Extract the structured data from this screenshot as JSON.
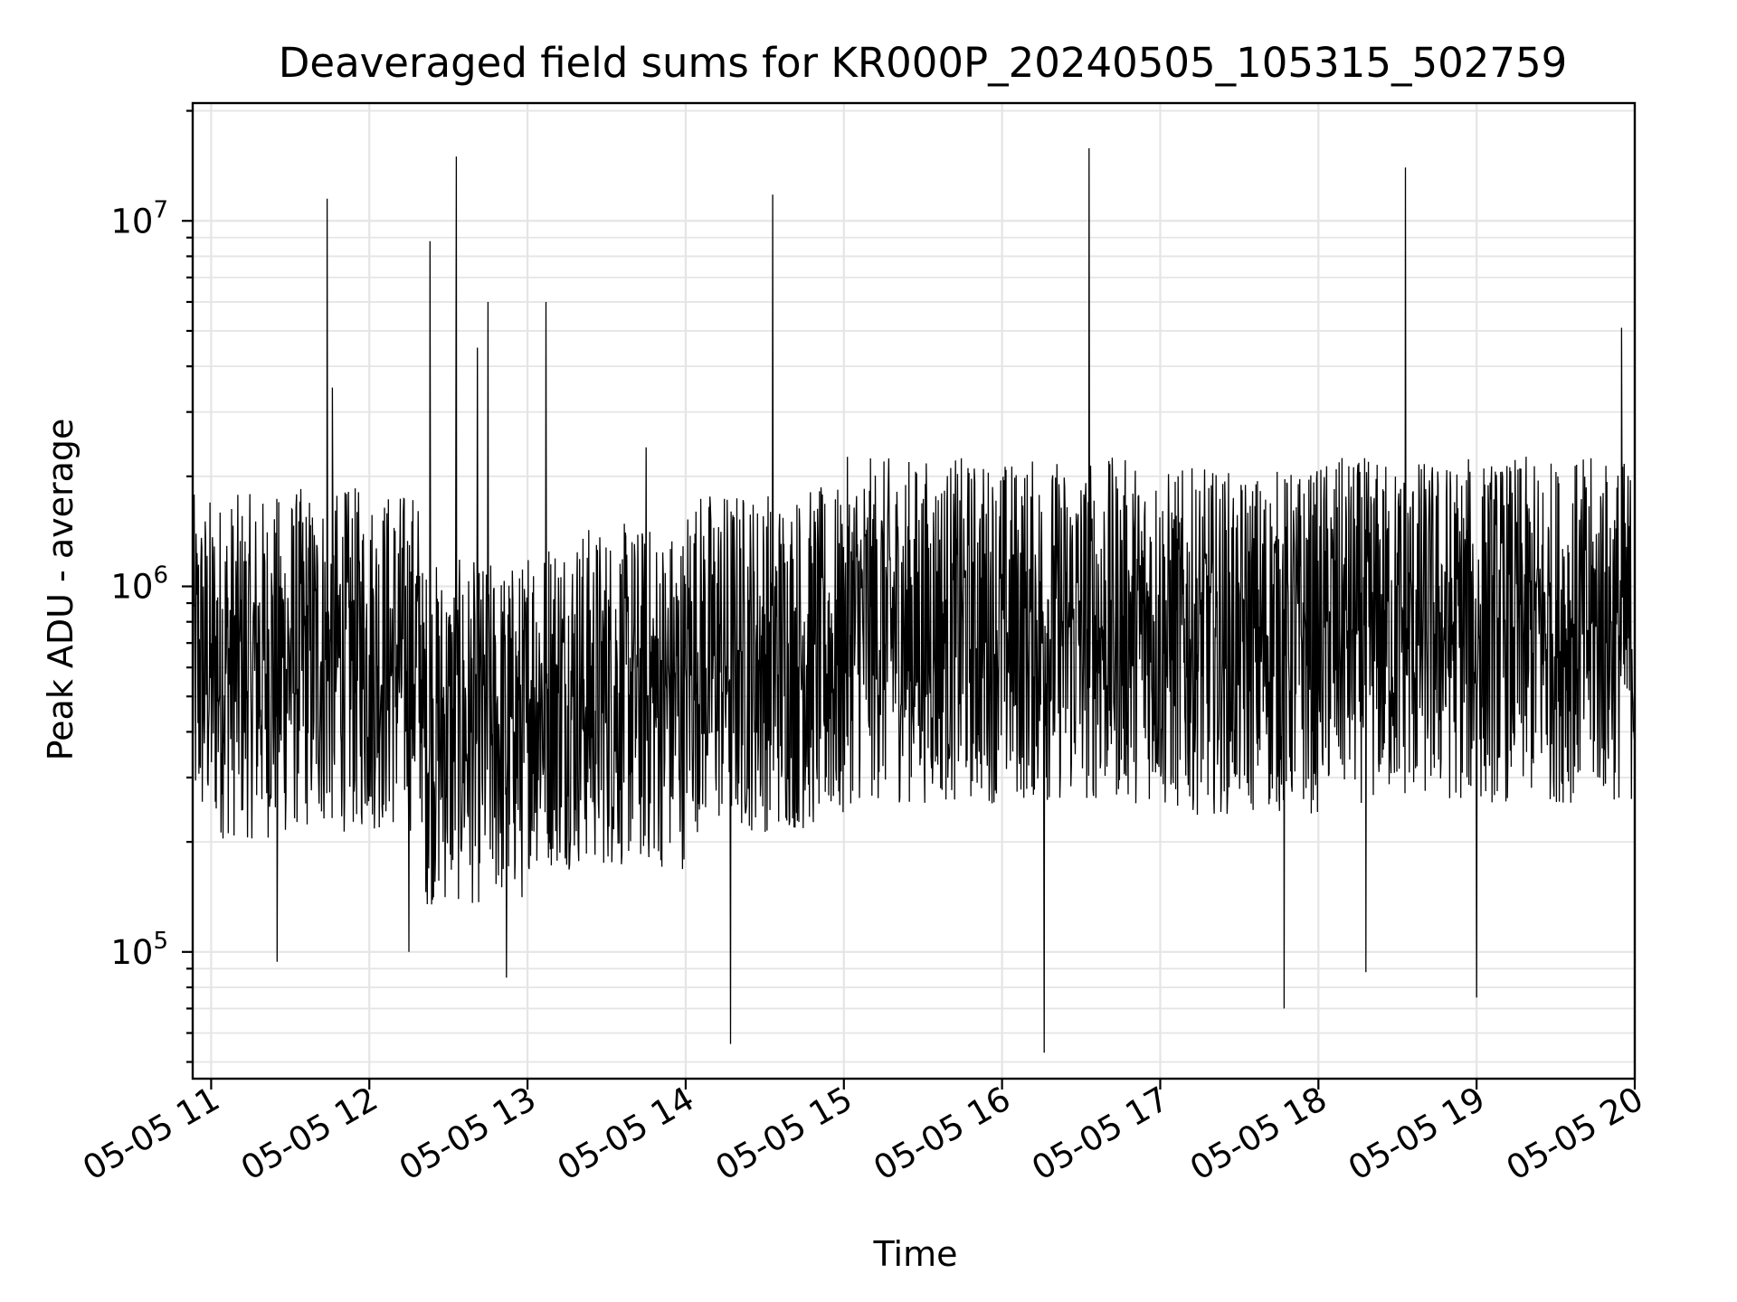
{
  "chart_data": {
    "type": "line",
    "title": "Deaveraged field sums for KR000P_20240505_105315_502759",
    "xlabel": "Time",
    "ylabel": "Peak ADU - average",
    "yscale": "log",
    "ylim": [
      45000,
      21000000
    ],
    "xlim": [
      "2024-05-05 10:53",
      "2024-05-05 20:00"
    ],
    "grid": true,
    "line_color": "#000000",
    "grid_color": "#e5e5e5",
    "x_ticks": [
      {
        "value": "2024-05-05 11:00",
        "label": "05-05 11"
      },
      {
        "value": "2024-05-05 12:00",
        "label": "05-05 12"
      },
      {
        "value": "2024-05-05 13:00",
        "label": "05-05 13"
      },
      {
        "value": "2024-05-05 14:00",
        "label": "05-05 14"
      },
      {
        "value": "2024-05-05 15:00",
        "label": "05-05 15"
      },
      {
        "value": "2024-05-05 16:00",
        "label": "05-05 16"
      },
      {
        "value": "2024-05-05 17:00",
        "label": "05-05 17"
      },
      {
        "value": "2024-05-05 18:00",
        "label": "05-05 18"
      },
      {
        "value": "2024-05-05 19:00",
        "label": "05-05 19"
      },
      {
        "value": "2024-05-05 20:00",
        "label": "05-05 20"
      }
    ],
    "y_ticks": [
      {
        "value": 100000,
        "base": "10",
        "exp": "5"
      },
      {
        "value": 1000000,
        "base": "10",
        "exp": "6"
      },
      {
        "value": 10000000,
        "base": "10",
        "exp": "7"
      }
    ],
    "series": [
      {
        "x": [
          "2024-05-05 10:53",
          "2024-05-05 11:00",
          "2024-05-05 11:15",
          "2024-05-05 11:25",
          "2024-05-05 11:30",
          "2024-05-05 11:44",
          "2024-05-05 11:46",
          "2024-05-05 11:50",
          "2024-05-05 12:00",
          "2024-05-05 12:15",
          "2024-05-05 12:23",
          "2024-05-05 12:33",
          "2024-05-05 12:41",
          "2024-05-05 12:45",
          "2024-05-05 12:52",
          "2024-05-05 12:55",
          "2024-05-05 13:00",
          "2024-05-05 13:07",
          "2024-05-05 13:30",
          "2024-05-05 13:45",
          "2024-05-05 14:00",
          "2024-05-05 14:17",
          "2024-05-05 14:33",
          "2024-05-05 14:45",
          "2024-05-05 15:00",
          "2024-05-05 15:30",
          "2024-05-05 15:45",
          "2024-05-05 16:00",
          "2024-05-05 16:16",
          "2024-05-05 16:33",
          "2024-05-05 16:45",
          "2024-05-05 17:00",
          "2024-05-05 17:30",
          "2024-05-05 17:47",
          "2024-05-05 18:00",
          "2024-05-05 18:18",
          "2024-05-05 18:33",
          "2024-05-05 18:45",
          "2024-05-05 19:00",
          "2024-05-05 19:30",
          "2024-05-05 19:48",
          "2024-05-05 19:55",
          "2024-05-05 20:00"
        ],
        "y": [
          1500000,
          700000,
          600000,
          94000,
          650000,
          11500000,
          3500000,
          900000,
          650000,
          100000,
          8800000,
          15000000,
          4500000,
          6000000,
          85000,
          400000,
          350000,
          6000000,
          550000,
          2400000,
          600000,
          56000,
          11800000,
          800000,
          700000,
          700000,
          800000,
          900000,
          53000,
          15800000,
          1200000,
          900000,
          950000,
          70000,
          800000,
          88000,
          14000000,
          700000,
          75000,
          800000,
          1800000,
          5100000,
          900000
        ]
      }
    ]
  }
}
